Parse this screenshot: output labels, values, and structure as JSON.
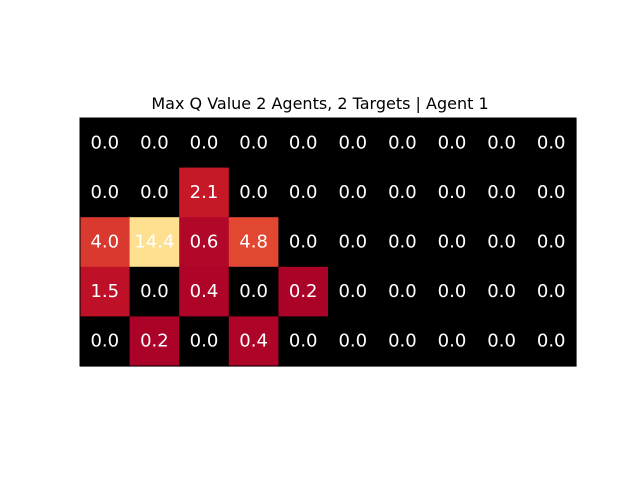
{
  "chart_data": {
    "type": "heatmap",
    "title": "Max Q Value 2 Agents, 2 Targets | Agent 1",
    "rows": 5,
    "cols": 10,
    "values": [
      [
        0.0,
        0.0,
        0.0,
        0.0,
        0.0,
        0.0,
        0.0,
        0.0,
        0.0,
        0.0
      ],
      [
        0.0,
        0.0,
        2.1,
        0.0,
        0.0,
        0.0,
        0.0,
        0.0,
        0.0,
        0.0
      ],
      [
        4.0,
        14.4,
        0.6,
        4.8,
        0.0,
        0.0,
        0.0,
        0.0,
        0.0,
        0.0
      ],
      [
        1.5,
        0.0,
        0.4,
        0.0,
        0.2,
        0.0,
        0.0,
        0.0,
        0.0,
        0.0
      ],
      [
        0.0,
        0.2,
        0.0,
        0.4,
        0.0,
        0.0,
        0.0,
        0.0,
        0.0,
        0.0
      ]
    ],
    "colormap": "black for zero cells, dark red to light yellow for positive values",
    "text_color": "#ffffff",
    "axes_visible": false
  }
}
